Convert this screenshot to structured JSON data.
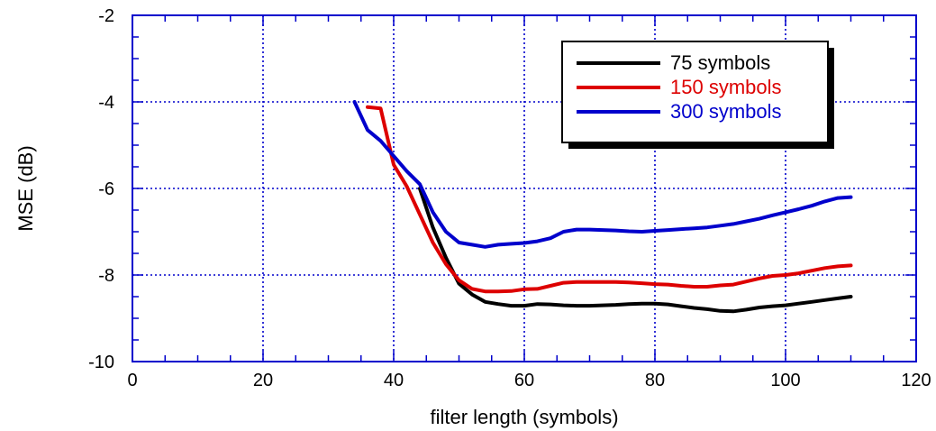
{
  "chart_data": {
    "type": "line",
    "title": "",
    "xlabel": "filter length (symbols)",
    "ylabel": "MSE (dB)",
    "xlim": [
      0,
      120
    ],
    "ylim": [
      -10,
      -2
    ],
    "xticks": [
      0,
      20,
      40,
      60,
      80,
      100,
      120
    ],
    "yticks": [
      -10,
      -8,
      -6,
      -4,
      -2
    ],
    "grid": true,
    "legend_position": "top-right",
    "series": [
      {
        "name": "75 symbols",
        "color": "#000000",
        "x": [
          44,
          46,
          48,
          50,
          52,
          54,
          56,
          58,
          60,
          62,
          64,
          66,
          68,
          70,
          72,
          74,
          76,
          78,
          80,
          82,
          84,
          86,
          88,
          90,
          92,
          94,
          96,
          98,
          100,
          102,
          104,
          106,
          108,
          110
        ],
        "y": [
          -6.0,
          -6.9,
          -7.6,
          -8.2,
          -8.45,
          -8.62,
          -8.67,
          -8.71,
          -8.71,
          -8.67,
          -8.68,
          -8.7,
          -8.71,
          -8.71,
          -8.7,
          -8.69,
          -8.67,
          -8.66,
          -8.66,
          -8.68,
          -8.72,
          -8.76,
          -8.79,
          -8.83,
          -8.84,
          -8.8,
          -8.75,
          -8.72,
          -8.7,
          -8.66,
          -8.62,
          -8.58,
          -8.54,
          -8.5
        ]
      },
      {
        "name": "150 symbols",
        "color": "#dd0000",
        "x": [
          36,
          38,
          40,
          42,
          44,
          46,
          48,
          50,
          52,
          54,
          56,
          58,
          60,
          62,
          64,
          66,
          68,
          70,
          72,
          74,
          76,
          78,
          80,
          82,
          84,
          86,
          88,
          90,
          92,
          94,
          96,
          98,
          100,
          102,
          104,
          106,
          108,
          110
        ],
        "y": [
          -4.12,
          -4.15,
          -5.45,
          -5.95,
          -6.6,
          -7.25,
          -7.75,
          -8.12,
          -8.32,
          -8.38,
          -8.38,
          -8.37,
          -8.33,
          -8.32,
          -8.25,
          -8.18,
          -8.16,
          -8.16,
          -8.16,
          -8.16,
          -8.17,
          -8.19,
          -8.21,
          -8.22,
          -8.25,
          -8.27,
          -8.27,
          -8.24,
          -8.22,
          -8.15,
          -8.08,
          -8.02,
          -8.0,
          -7.96,
          -7.9,
          -7.84,
          -7.8,
          -7.78
        ]
      },
      {
        "name": "300 symbols",
        "color": "#0000cc",
        "x": [
          34,
          36,
          38,
          40,
          42,
          44,
          46,
          48,
          50,
          52,
          54,
          56,
          58,
          60,
          62,
          64,
          66,
          68,
          70,
          72,
          74,
          76,
          78,
          80,
          82,
          84,
          86,
          88,
          90,
          92,
          94,
          96,
          98,
          100,
          102,
          104,
          106,
          108,
          110
        ],
        "y": [
          -4.0,
          -4.65,
          -4.9,
          -5.25,
          -5.6,
          -5.9,
          -6.55,
          -7.0,
          -7.25,
          -7.3,
          -7.35,
          -7.3,
          -7.28,
          -7.26,
          -7.22,
          -7.15,
          -7.0,
          -6.95,
          -6.95,
          -6.96,
          -6.97,
          -6.99,
          -7.0,
          -6.98,
          -6.96,
          -6.94,
          -6.92,
          -6.9,
          -6.86,
          -6.82,
          -6.76,
          -6.7,
          -6.62,
          -6.55,
          -6.48,
          -6.4,
          -6.3,
          -6.22,
          -6.2
        ]
      }
    ]
  }
}
